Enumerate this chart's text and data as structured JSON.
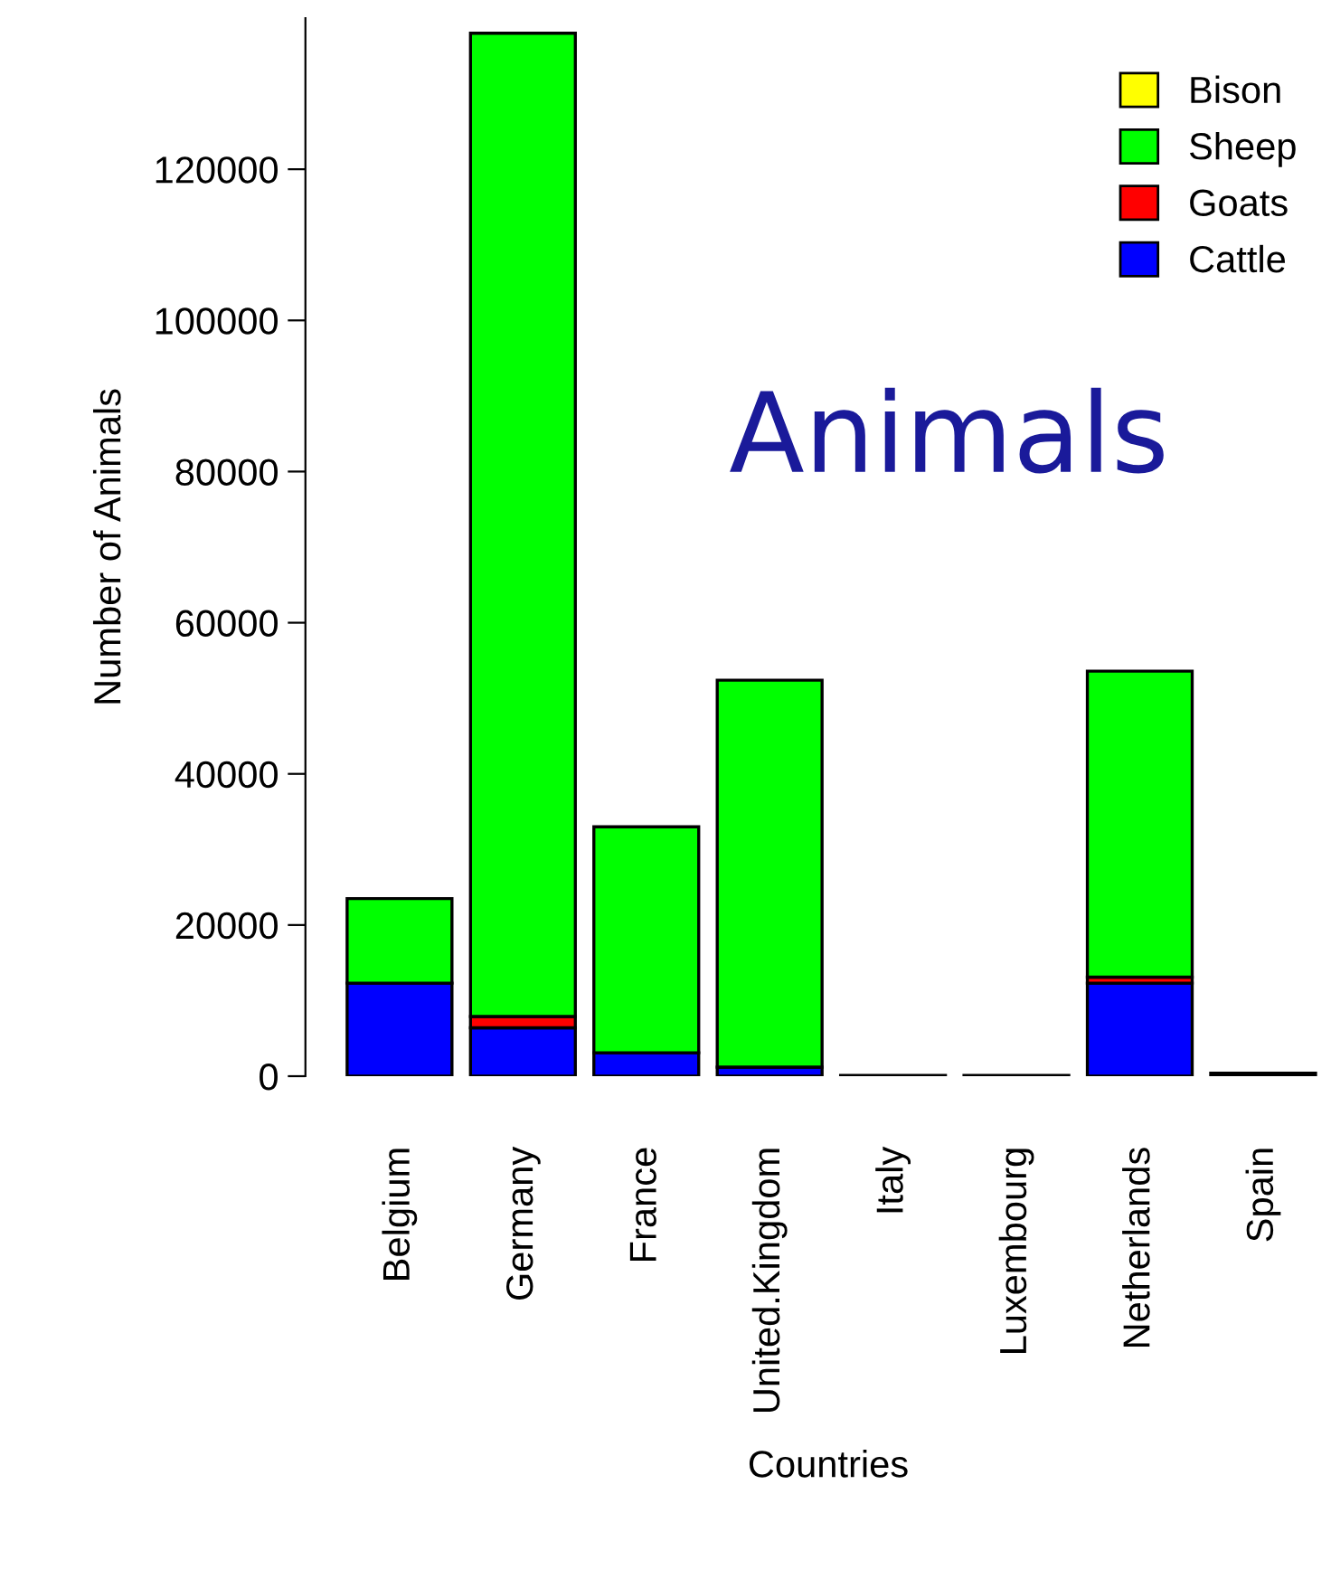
{
  "chart_data": {
    "type": "bar",
    "title": "Animals",
    "xlabel": "Countries",
    "ylabel": "Number of Animals",
    "stacked": true,
    "legend": "top right",
    "grid": false,
    "categories": [
      "Belgium",
      "Germany",
      "France",
      "United.Kingdom",
      "Italy",
      "Luxembourg",
      "Netherlands",
      "Spain"
    ],
    "series": [
      {
        "name": "Cattle",
        "color": "#0000ff",
        "values": [
          12300,
          6400,
          3100,
          1200,
          100,
          100,
          12300,
          400
        ]
      },
      {
        "name": "Goats",
        "color": "#ff0000",
        "values": [
          0,
          1500,
          0,
          0,
          0,
          0,
          800,
          0
        ]
      },
      {
        "name": "Sheep",
        "color": "#00ff00",
        "values": [
          11200,
          130100,
          29900,
          51200,
          0,
          0,
          40500,
          0
        ]
      },
      {
        "name": "Bison",
        "color": "#ffff00",
        "values": [
          0,
          0,
          0,
          0,
          0,
          0,
          0,
          0
        ]
      }
    ],
    "ylim": [
      0,
      140000
    ],
    "yticks": [
      0,
      20000,
      40000,
      60000,
      80000,
      100000,
      120000
    ]
  }
}
